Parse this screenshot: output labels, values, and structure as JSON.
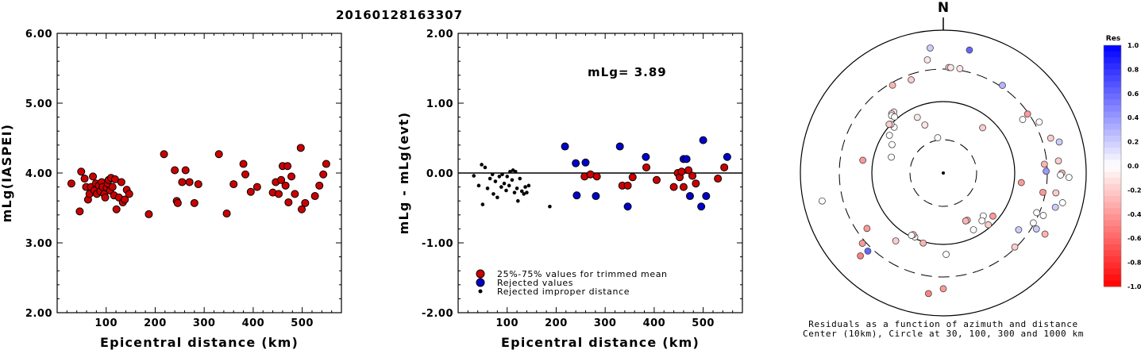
{
  "figure_title": "20160128163307",
  "chart_data": [
    {
      "type": "scatter",
      "xlabel": "Epicentral distance (km)",
      "ylabel": "mLg(IASPEI)",
      "xlim": [
        0,
        580
      ],
      "ylim": [
        2.0,
        6.0
      ],
      "xticks": [
        "100",
        "200",
        "300",
        "400",
        "500"
      ],
      "yticks": [
        "2.00",
        "3.00",
        "4.00",
        "5.00",
        "6.00"
      ],
      "grid": false,
      "series": [
        {
          "color": "#cc0000",
          "points": [
            [
              29,
              3.85
            ],
            [
              46,
              3.45
            ],
            [
              49,
              4.02
            ],
            [
              56,
              3.92
            ],
            [
              59,
              3.8
            ],
            [
              63,
              3.62
            ],
            [
              66,
              3.7
            ],
            [
              69,
              3.8
            ],
            [
              73,
              3.95
            ],
            [
              76,
              3.75
            ],
            [
              79,
              3.85
            ],
            [
              81,
              3.7
            ],
            [
              85,
              3.82
            ],
            [
              88,
              3.74
            ],
            [
              91,
              3.87
            ],
            [
              93,
              3.8
            ],
            [
              96,
              3.7
            ],
            [
              98,
              3.65
            ],
            [
              101,
              3.79
            ],
            [
              103,
              3.85
            ],
            [
              105,
              3.9
            ],
            [
              108,
              3.75
            ],
            [
              110,
              3.93
            ],
            [
              113,
              3.8
            ],
            [
              116,
              3.68
            ],
            [
              118,
              3.91
            ],
            [
              121,
              3.48
            ],
            [
              126,
              3.65
            ],
            [
              131,
              3.87
            ],
            [
              134,
              3.58
            ],
            [
              138,
              3.62
            ],
            [
              142,
              3.76
            ],
            [
              147,
              3.7
            ],
            [
              187,
              3.41
            ],
            [
              218,
              4.27
            ],
            [
              240,
              4.04
            ],
            [
              244,
              3.6
            ],
            [
              246,
              3.57
            ],
            [
              255,
              3.87
            ],
            [
              262,
              4.04
            ],
            [
              270,
              3.87
            ],
            [
              280,
              3.57
            ],
            [
              288,
              3.84
            ],
            [
              330,
              4.27
            ],
            [
              346,
              3.42
            ],
            [
              360,
              3.84
            ],
            [
              380,
              4.13
            ],
            [
              384,
              3.98
            ],
            [
              395,
              3.73
            ],
            [
              408,
              3.8
            ],
            [
              440,
              3.72
            ],
            [
              446,
              3.87
            ],
            [
              452,
              3.7
            ],
            [
              457,
              3.9
            ],
            [
              460,
              4.1
            ],
            [
              466,
              3.82
            ],
            [
              470,
              4.1
            ],
            [
              472,
              3.58
            ],
            [
              478,
              3.95
            ],
            [
              485,
              3.7
            ],
            [
              497,
              4.36
            ],
            [
              499,
              3.48
            ],
            [
              506,
              3.57
            ],
            [
              526,
              3.67
            ],
            [
              535,
              3.82
            ],
            [
              543,
              3.98
            ],
            [
              549,
              4.13
            ]
          ]
        }
      ]
    },
    {
      "type": "scatter",
      "xlabel": "Epicentral distance (km)",
      "ylabel": "mLg - mLg(evt)",
      "xlim": [
        0,
        580
      ],
      "ylim": [
        -2.0,
        2.0
      ],
      "xticks": [
        "100",
        "200",
        "300",
        "400",
        "500"
      ],
      "yticks": [
        "-2.00",
        "-1.00",
        "0.00",
        "1.00",
        "2.00"
      ],
      "grid": false,
      "annotation": "mLg= 3.89",
      "reference_line": 0.0,
      "legend": {
        "position": "bottom-left",
        "entries": [
          {
            "label": "25%-75% values for trimmed mean",
            "color": "#cc0000"
          },
          {
            "label": "Rejected values",
            "color": "#0000cc"
          },
          {
            "label": "Rejected improper distance",
            "color": "#000000"
          }
        ]
      },
      "series": [
        {
          "name": "25%-75% values for trimmed mean",
          "color": "#cc0000",
          "points": [
            [
              258,
              -0.05
            ],
            [
              270,
              -0.02
            ],
            [
              283,
              -0.05
            ],
            [
              335,
              -0.18
            ],
            [
              346,
              -0.18
            ],
            [
              356,
              -0.06
            ],
            [
              384,
              0.08
            ],
            [
              405,
              -0.1
            ],
            [
              440,
              -0.2
            ],
            [
              448,
              0.0
            ],
            [
              452,
              -0.06
            ],
            [
              456,
              0.02
            ],
            [
              460,
              -0.2
            ],
            [
              470,
              0.04
            ],
            [
              478,
              -0.04
            ],
            [
              485,
              -0.15
            ],
            [
              530,
              -0.08
            ],
            [
              543,
              0.08
            ]
          ]
        },
        {
          "name": "Rejected values",
          "color": "#0000cc",
          "points": [
            [
              218,
              0.38
            ],
            [
              240,
              0.14
            ],
            [
              242,
              -0.32
            ],
            [
              260,
              0.15
            ],
            [
              281,
              -0.33
            ],
            [
              330,
              0.38
            ],
            [
              346,
              -0.48
            ],
            [
              383,
              0.23
            ],
            [
              460,
              0.2
            ],
            [
              466,
              0.2
            ],
            [
              473,
              -0.33
            ],
            [
              496,
              -0.48
            ],
            [
              500,
              0.47
            ],
            [
              506,
              -0.33
            ],
            [
              549,
              0.23
            ]
          ]
        },
        {
          "name": "Rejected improper distance",
          "color": "#000000",
          "points": [
            [
              32,
              -0.04
            ],
            [
              42,
              -0.18
            ],
            [
              48,
              0.12
            ],
            [
              50,
              -0.45
            ],
            [
              55,
              0.08
            ],
            [
              60,
              -0.22
            ],
            [
              65,
              -0.08
            ],
            [
              70,
              -0.02
            ],
            [
              72,
              -0.3
            ],
            [
              76,
              -0.12
            ],
            [
              80,
              -0.35
            ],
            [
              84,
              -0.05
            ],
            [
              88,
              -0.2
            ],
            [
              90,
              -0.02
            ],
            [
              94,
              -0.15
            ],
            [
              98,
              -0.25
            ],
            [
              100,
              -0.05
            ],
            [
              104,
              -0.18
            ],
            [
              106,
              0.02
            ],
            [
              110,
              -0.1
            ],
            [
              112,
              0.04
            ],
            [
              115,
              -0.28
            ],
            [
              117,
              0.02
            ],
            [
              120,
              -0.22
            ],
            [
              122,
              -0.4
            ],
            [
              126,
              -0.08
            ],
            [
              130,
              -0.26
            ],
            [
              134,
              -0.3
            ],
            [
              137,
              -0.2
            ],
            [
              140,
              -0.28
            ],
            [
              144,
              -0.18
            ],
            [
              187,
              -0.48
            ]
          ]
        }
      ]
    },
    {
      "type": "scatter",
      "subtype": "polar",
      "north_label": "N",
      "caption_line1": "Residuals as a function of azimuth and distance",
      "caption_line2": "Center (10km), Circle at 30, 100, 300 and 1000 km",
      "colorbar": {
        "title": "Res",
        "position": "right",
        "ticks": [
          "1.0",
          "0.8",
          "0.6",
          "0.4",
          "0.2",
          "0.0",
          "-0.2",
          "-0.4",
          "-0.6",
          "-0.8",
          "-1.0"
        ],
        "positive_color": "#0000ff",
        "negative_color": "#ff0000"
      },
      "points": [
        {
          "az": 339,
          "dist": 0.36,
          "res": -0.1
        },
        {
          "az": 351,
          "dist": 0.25,
          "res": 0.0
        },
        {
          "az": 341,
          "dist": 0.69,
          "res": -0.2
        },
        {
          "az": 352,
          "dist": 0.8,
          "res": -0.1
        },
        {
          "az": 354,
          "dist": 0.88,
          "res": 0.2
        },
        {
          "az": 12,
          "dist": 0.88,
          "res": 0.6
        },
        {
          "az": 3,
          "dist": 0.74,
          "res": -0.2
        },
        {
          "az": 4,
          "dist": 0.74,
          "res": -0.1
        },
        {
          "az": 9,
          "dist": 0.74,
          "res": -0.1
        },
        {
          "az": 34,
          "dist": 0.74,
          "res": 0.3
        },
        {
          "az": 330,
          "dist": 0.71,
          "res": -0.3
        },
        {
          "az": 321,
          "dist": 0.55,
          "res": -0.1
        },
        {
          "az": 319,
          "dist": 0.55,
          "res": -0.2
        },
        {
          "az": 318,
          "dist": 0.54,
          "res": 0.0
        },
        {
          "az": 319,
          "dist": 0.52,
          "res": 0.0
        },
        {
          "az": 313,
          "dist": 0.47,
          "res": 0.0
        },
        {
          "az": 313,
          "dist": 0.5,
          "res": -0.1
        },
        {
          "az": 312,
          "dist": 0.51,
          "res": -0.2
        },
        {
          "az": 305,
          "dist": 0.46,
          "res": 0.0
        },
        {
          "az": 299,
          "dist": 0.41,
          "res": 0.0
        },
        {
          "az": 287,
          "dist": 0.38,
          "res": 0.0
        },
        {
          "az": 279,
          "dist": 0.57,
          "res": -0.4
        },
        {
          "az": 335,
          "dist": 0.43,
          "res": -0.1
        },
        {
          "az": 41,
          "dist": 0.42,
          "res": -0.2
        },
        {
          "az": 56,
          "dist": 0.67,
          "res": 0.0
        },
        {
          "az": 55,
          "dist": 0.72,
          "res": -0.4
        },
        {
          "az": 62,
          "dist": 0.76,
          "res": 0.0
        },
        {
          "az": 72,
          "dist": 0.79,
          "res": -0.2
        },
        {
          "az": 75,
          "dist": 0.84,
          "res": 0.2
        },
        {
          "az": 84,
          "dist": 0.81,
          "res": -0.2
        },
        {
          "az": 85,
          "dist": 0.71,
          "res": -0.3
        },
        {
          "az": 89,
          "dist": 0.72,
          "res": 0.4
        },
        {
          "az": 90,
          "dist": 0.83,
          "res": -0.3
        },
        {
          "az": 92,
          "dist": 0.88,
          "res": 0.0
        },
        {
          "az": 91,
          "dist": 0.82,
          "res": 0.0
        },
        {
          "az": 100,
          "dist": 0.8,
          "res": -0.2
        },
        {
          "az": 101,
          "dist": 0.71,
          "res": -0.4
        },
        {
          "az": 104,
          "dist": 0.86,
          "res": 0.0
        },
        {
          "az": 107,
          "dist": 0.82,
          "res": 0.2
        },
        {
          "az": 113,
          "dist": 0.71,
          "res": 0.0
        },
        {
          "az": 113,
          "dist": 0.76,
          "res": 0.0
        },
        {
          "az": 119,
          "dist": 0.72,
          "res": 0.0
        },
        {
          "az": 121,
          "dist": 0.76,
          "res": 0.2
        },
        {
          "az": 121,
          "dist": 0.83,
          "res": -0.3
        },
        {
          "az": 127,
          "dist": 0.66,
          "res": 0.2
        },
        {
          "az": 136,
          "dist": 0.72,
          "res": -0.2
        },
        {
          "az": 97,
          "dist": 0.55,
          "res": -0.4
        },
        {
          "az": 131,
          "dist": 0.46,
          "res": -0.4
        },
        {
          "az": 137,
          "dist": 0.41,
          "res": 0.0
        },
        {
          "az": 139,
          "dist": 0.48,
          "res": -0.2
        },
        {
          "az": 141,
          "dist": 0.43,
          "res": 0.0
        },
        {
          "az": 152,
          "dist": 0.45,
          "res": 0.0
        },
        {
          "az": 153,
          "dist": 0.37,
          "res": -0.3
        },
        {
          "az": 155,
          "dist": 0.37,
          "res": -0.3
        },
        {
          "az": 178,
          "dist": 0.57,
          "res": 0.0
        },
        {
          "az": 180,
          "dist": 0.81,
          "res": -0.4
        },
        {
          "az": 187,
          "dist": 0.85,
          "res": -0.5
        },
        {
          "az": 196,
          "dist": 0.51,
          "res": -0.3
        },
        {
          "az": 204,
          "dist": 0.49,
          "res": 0.0
        },
        {
          "az": 206,
          "dist": 0.48,
          "res": -0.3
        },
        {
          "az": 207,
          "dist": 0.49,
          "res": 0.0
        },
        {
          "az": 215,
          "dist": 0.58,
          "res": -0.2
        },
        {
          "az": 225,
          "dist": 0.82,
          "res": -0.5
        },
        {
          "az": 224,
          "dist": 0.76,
          "res": 0.6
        },
        {
          "az": 229,
          "dist": 0.75,
          "res": -0.4
        },
        {
          "az": 234,
          "dist": 0.66,
          "res": -0.4
        },
        {
          "az": 257,
          "dist": 0.87,
          "res": 0.0
        }
      ]
    }
  ]
}
